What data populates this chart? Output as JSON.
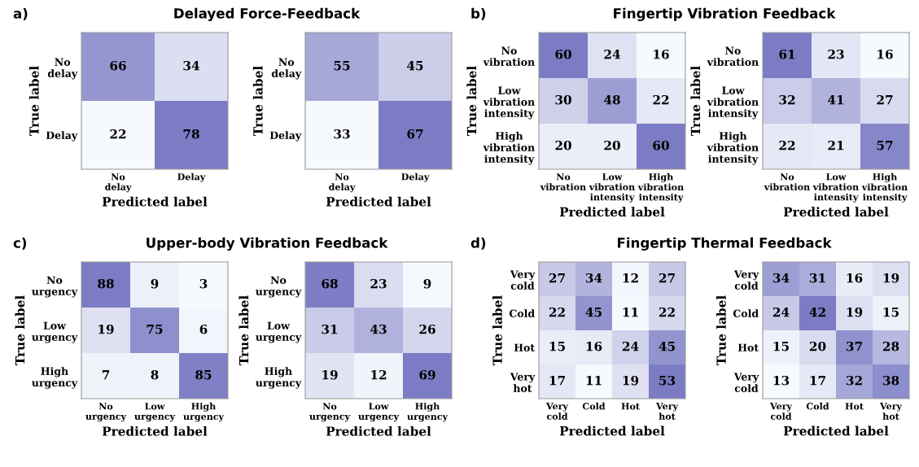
{
  "chart_data": [
    {
      "type": "heatmap",
      "title": "Delayed Force-Feedback",
      "annotations": [
        "a)"
      ],
      "categories": [
        "No\ndelay",
        "Delay"
      ],
      "y_categories": [
        "No\ndelay",
        "Delay"
      ],
      "cells": [
        [
          66,
          34
        ],
        [
          22,
          78
        ]
      ],
      "xlabel": "Predicted label",
      "ylabel": "True label",
      "color": "#7b7cc4",
      "data_labels": true
    },
    {
      "type": "heatmap",
      "categories": [
        "No\ndelay",
        "Delay"
      ],
      "y_categories": [
        "No\ndelay",
        "Delay"
      ],
      "cells": [
        [
          55,
          45
        ],
        [
          33,
          67
        ]
      ],
      "xlabel": "Predicted label",
      "ylabel": "True label",
      "color": "#7b7cc4",
      "data_labels": true
    },
    {
      "type": "heatmap",
      "title": "Fingertip Vibration Feedback",
      "annotations": [
        "b)"
      ],
      "categories": [
        "No\nvibration",
        "Low\nvibration\nintensity",
        "High\nvibration\nintensity"
      ],
      "y_categories": [
        "No\nvibration",
        "Low\nvibration\nintensity",
        "High\nvibration\nintensity"
      ],
      "cells": [
        [
          60,
          24,
          16
        ],
        [
          30,
          48,
          22
        ],
        [
          20,
          20,
          60
        ]
      ],
      "xlabel": "Predicted label",
      "ylabel": "True label",
      "color": "#7b7cc4",
      "data_labels": true
    },
    {
      "type": "heatmap",
      "categories": [
        "No\nvibration",
        "Low\nvibration\nintensity",
        "High\nvibration\nintensity"
      ],
      "y_categories": [
        "No\nvibration",
        "Low\nvibration\nintensity",
        "High\nvibration\nintensity"
      ],
      "cells": [
        [
          61,
          23,
          16
        ],
        [
          32,
          41,
          27
        ],
        [
          22,
          21,
          57
        ]
      ],
      "xlabel": "Predicted label",
      "ylabel": "True label",
      "color": "#7b7cc4",
      "data_labels": true
    },
    {
      "type": "heatmap",
      "title": "Upper-body Vibration Feedback",
      "annotations": [
        "c)"
      ],
      "categories": [
        "No\nurgency",
        "Low\nurgency",
        "High\nurgency"
      ],
      "y_categories": [
        "No\nurgency",
        "Low\nurgency",
        "High\nurgency"
      ],
      "cells": [
        [
          88,
          9,
          3
        ],
        [
          19,
          75,
          6
        ],
        [
          7,
          8,
          85
        ]
      ],
      "xlabel": "Predicted label",
      "ylabel": "True label",
      "color": "#7b7cc4",
      "data_labels": true
    },
    {
      "type": "heatmap",
      "categories": [
        "No\nurgency",
        "Low\nurgency",
        "High\nurgency"
      ],
      "y_categories": [
        "No\nurgency",
        "Low\nurgency",
        "High\nurgency"
      ],
      "cells": [
        [
          68,
          23,
          9
        ],
        [
          31,
          43,
          26
        ],
        [
          19,
          12,
          69
        ]
      ],
      "xlabel": "Predicted label",
      "ylabel": "True label",
      "color": "#7b7cc4",
      "data_labels": true
    },
    {
      "type": "heatmap",
      "title": "Fingertip Thermal Feedback",
      "annotations": [
        "d)"
      ],
      "categories": [
        "Very\ncold",
        "Cold",
        "Hot",
        "Very\nhot"
      ],
      "y_categories": [
        "Very\ncold",
        "Cold",
        "Hot",
        "Very\nhot"
      ],
      "cells": [
        [
          27,
          34,
          12,
          27
        ],
        [
          22,
          45,
          11,
          22
        ],
        [
          15,
          16,
          24,
          45
        ],
        [
          17,
          11,
          19,
          53
        ]
      ],
      "xlabel": "Predicted label",
      "ylabel": "True label",
      "color": "#7b7cc4",
      "data_labels": true
    },
    {
      "type": "heatmap",
      "categories": [
        "Very\ncold",
        "Cold",
        "Hot",
        "Very\nhot"
      ],
      "y_categories": [
        "Very\ncold",
        "Cold",
        "Hot",
        "Very\ncold"
      ],
      "cells": [
        [
          34,
          31,
          16,
          19
        ],
        [
          24,
          42,
          19,
          15
        ],
        [
          15,
          20,
          37,
          28
        ],
        [
          13,
          17,
          32,
          38
        ]
      ],
      "xlabel": "Predicted label",
      "ylabel": "True label",
      "color": "#7b7cc4",
      "data_labels": true
    }
  ]
}
